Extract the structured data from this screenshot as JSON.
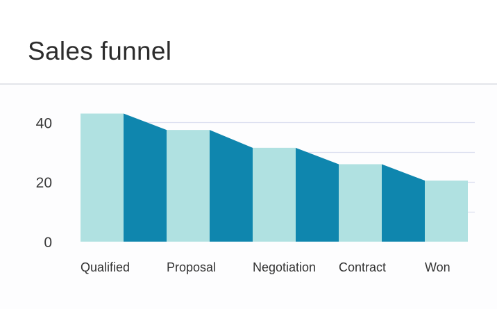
{
  "header": {
    "title": "Sales funnel"
  },
  "colors": {
    "bar": "#b0e1e1",
    "connector": "#0f86ae",
    "gridline": "#dcdff0"
  },
  "chart_data": {
    "type": "bar",
    "title": "Sales funnel",
    "categories": [
      "Qualified",
      "Proposal",
      "Negotiation",
      "Contract",
      "Won"
    ],
    "values": [
      43,
      37.5,
      31.5,
      26,
      20.5
    ],
    "yticks": [
      0,
      20,
      40
    ],
    "ylim": [
      0,
      50
    ],
    "grid": true,
    "xlabel": "",
    "ylabel": ""
  }
}
